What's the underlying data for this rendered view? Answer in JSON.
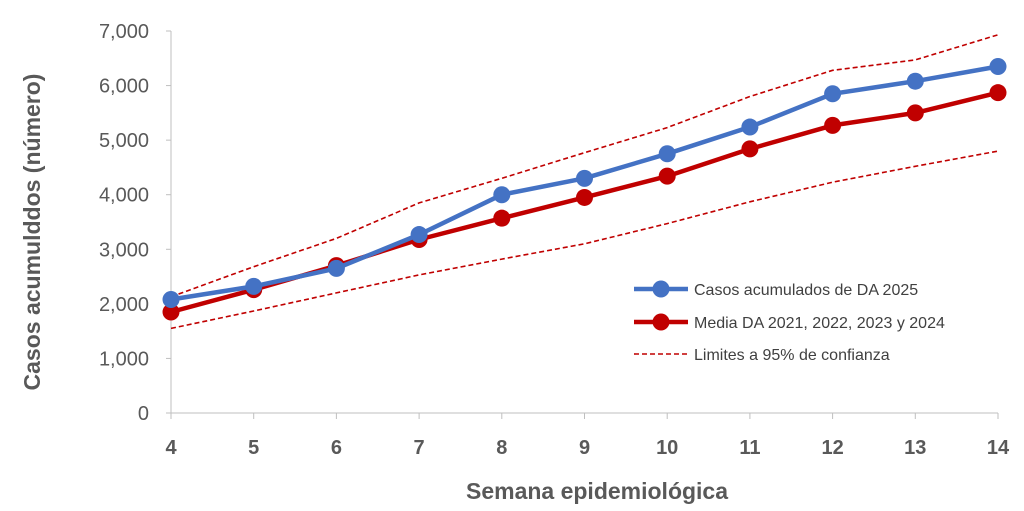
{
  "chart_data": {
    "type": "line",
    "title": "",
    "xlabel": "Semana epidemiológica",
    "ylabel": "Casos acumulddos (número)",
    "x": [
      4,
      5,
      6,
      7,
      8,
      9,
      10,
      11,
      12,
      13,
      14
    ],
    "ylim": [
      0,
      7000
    ],
    "yticks": [
      "0",
      "1,000",
      "2,000",
      "3,000",
      "4,000",
      "5,000",
      "6,000",
      "7,000"
    ],
    "grid": false,
    "legend_position": "right",
    "series": [
      {
        "name": "Casos acumulados de DA 2025",
        "color": "#4472c4",
        "style": "line-marker",
        "values": [
          2080,
          2320,
          2650,
          3270,
          4000,
          4300,
          4750,
          5240,
          5850,
          6080,
          6350
        ]
      },
      {
        "name": "Media DA 2021, 2022, 2023 y 2024",
        "color": "#c00000",
        "style": "line-marker",
        "values": [
          1850,
          2260,
          2700,
          3180,
          3570,
          3950,
          4340,
          4840,
          5270,
          5500,
          5870
        ]
      },
      {
        "name": "Limites a 95% de confianza",
        "color": "#c00000",
        "style": "dashed",
        "values": [
          2130,
          2680,
          3200,
          3850,
          4300,
          4770,
          5230,
          5800,
          6280,
          6470,
          6930
        ]
      },
      {
        "name": "",
        "color": "#c00000",
        "style": "dashed",
        "values": [
          1550,
          1870,
          2200,
          2530,
          2820,
          3100,
          3470,
          3870,
          4230,
          4520,
          4800
        ]
      }
    ]
  }
}
